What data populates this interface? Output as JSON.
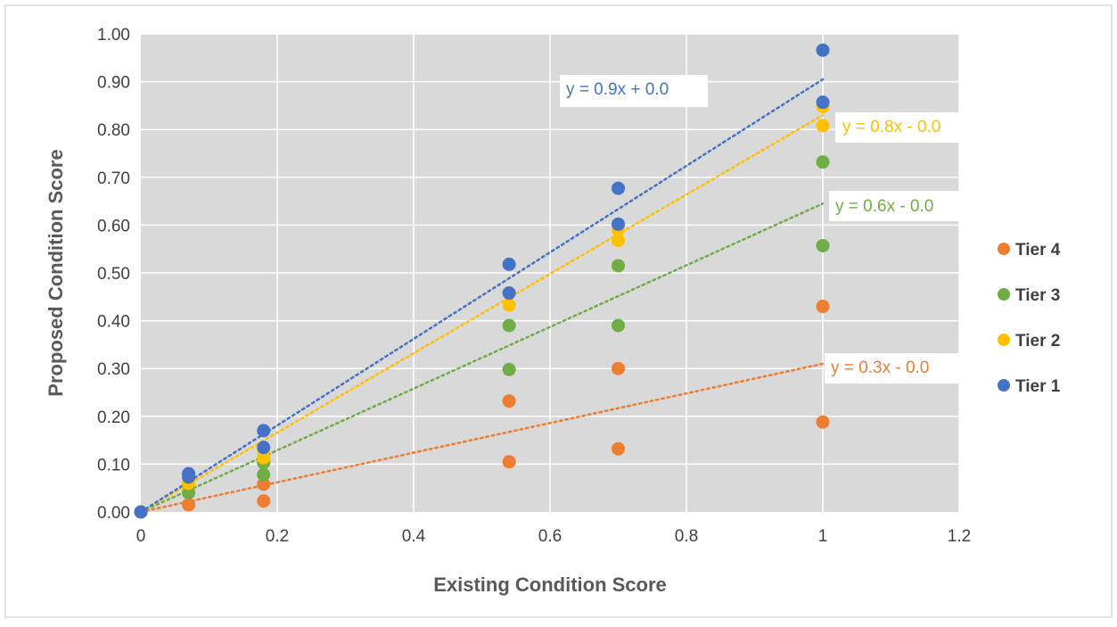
{
  "chart_data": {
    "type": "scatter",
    "title": "",
    "xlabel": "Existing Condition Score",
    "ylabel": "Proposed Condition Score",
    "xlim": [
      0,
      1.2
    ],
    "ylim": [
      0,
      1.0
    ],
    "x_ticks": [
      "0",
      "0.2",
      "0.4",
      "0.6",
      "0.8",
      "1",
      "1.2"
    ],
    "y_ticks": [
      "0.00",
      "0.10",
      "0.20",
      "0.30",
      "0.40",
      "0.50",
      "0.60",
      "0.70",
      "0.80",
      "0.90",
      "1.00"
    ],
    "grid": true,
    "plot_background": "#d9d9d9",
    "legend_position": "right",
    "series": [
      {
        "name": "Tier 4",
        "color": "#ed7d31",
        "points": [
          [
            0,
            0
          ],
          [
            0.07,
            0.015
          ],
          [
            0.18,
            0.023
          ],
          [
            0.18,
            0.058
          ],
          [
            0.54,
            0.105
          ],
          [
            0.54,
            0.232
          ],
          [
            0.7,
            0.132
          ],
          [
            0.7,
            0.3
          ],
          [
            1.0,
            0.188
          ],
          [
            1.0,
            0.43
          ]
        ],
        "trendline": {
          "slope": 0.31,
          "intercept": 0.0,
          "label": "y = 0.3x - 0.0"
        }
      },
      {
        "name": "Tier 3",
        "color": "#70ad47",
        "points": [
          [
            0,
            0
          ],
          [
            0.07,
            0.04
          ],
          [
            0.18,
            0.078
          ],
          [
            0.18,
            0.103
          ],
          [
            0.54,
            0.298
          ],
          [
            0.54,
            0.39
          ],
          [
            0.7,
            0.39
          ],
          [
            0.7,
            0.515
          ],
          [
            1.0,
            0.557
          ],
          [
            1.0,
            0.732
          ]
        ],
        "trendline": {
          "slope": 0.645,
          "intercept": 0.0,
          "label": "y = 0.6x - 0.0"
        }
      },
      {
        "name": "Tier 2",
        "color": "#ffc000",
        "points": [
          [
            0,
            0
          ],
          [
            0.07,
            0.06
          ],
          [
            0.18,
            0.113
          ],
          [
            0.18,
            0.128
          ],
          [
            0.54,
            0.433
          ],
          [
            0.7,
            0.568
          ],
          [
            0.7,
            0.59
          ],
          [
            1.0,
            0.808
          ],
          [
            1.0,
            0.848
          ]
        ],
        "trendline": {
          "slope": 0.83,
          "intercept": 0.0,
          "label": "y = 0.8x - 0.0"
        }
      },
      {
        "name": "Tier 1",
        "color": "#4472c4",
        "points": [
          [
            0,
            0
          ],
          [
            0.07,
            0.073
          ],
          [
            0.07,
            0.08
          ],
          [
            0.18,
            0.135
          ],
          [
            0.18,
            0.17
          ],
          [
            0.54,
            0.458
          ],
          [
            0.54,
            0.518
          ],
          [
            0.7,
            0.602
          ],
          [
            0.7,
            0.677
          ],
          [
            1.0,
            0.857
          ],
          [
            1.0,
            0.966
          ]
        ],
        "trendline": {
          "slope": 0.905,
          "intercept": 0.0,
          "label": "y = 0.9x + 0.0"
        }
      }
    ],
    "legend_order": [
      "Tier 4",
      "Tier 3",
      "Tier 2",
      "Tier 1"
    ]
  }
}
